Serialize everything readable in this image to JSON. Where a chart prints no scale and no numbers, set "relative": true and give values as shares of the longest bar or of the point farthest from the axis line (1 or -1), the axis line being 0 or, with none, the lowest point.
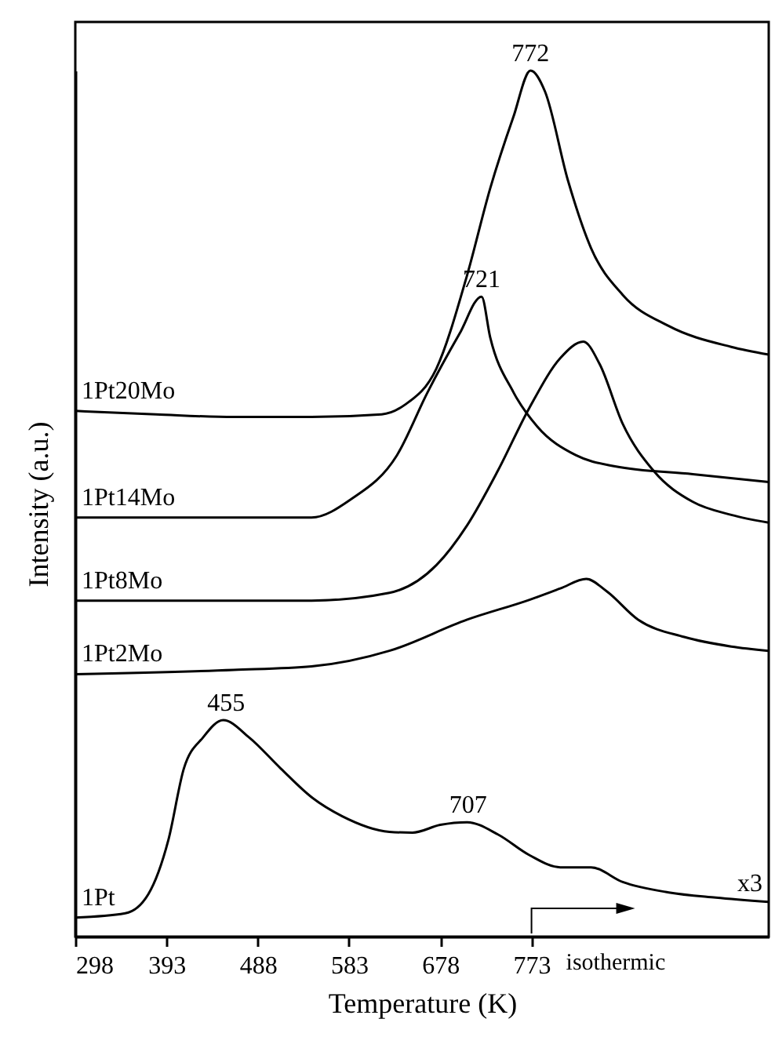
{
  "chart_data": {
    "type": "line",
    "relative": true,
    "xlabel": "Temperature (K)",
    "ylabel": "Intensity (a.u.)",
    "xlim": [
      298,
      1020
    ],
    "xticks": [
      298,
      393,
      488,
      583,
      678,
      773
    ],
    "grid": false,
    "marker": "none",
    "line_style": "solid",
    "x": [
      298,
      382,
      463,
      544,
      617,
      641,
      674,
      706,
      730,
      754,
      772,
      787,
      811,
      835,
      868,
      916,
      981,
      1020
    ],
    "series": [
      {
        "name": "1Pt20Mo",
        "color": "#000000",
        "values": [
          0.607,
          0.603,
          0.6,
          0.6,
          0.603,
          0.614,
          0.656,
          0.764,
          0.864,
          0.946,
          1.0,
          0.976,
          0.873,
          0.795,
          0.741,
          0.705,
          0.681,
          0.672
        ]
      },
      {
        "name": "1Pt14Mo",
        "color": "#000000",
        "x": [
          298,
          382,
          463,
          544,
          585,
          633,
          665,
          698,
          721,
          730,
          754,
          779,
          819,
          860,
          941,
          1020
        ],
        "values": [
          0.484,
          0.484,
          0.484,
          0.484,
          0.505,
          0.556,
          0.629,
          0.696,
          0.739,
          0.692,
          0.629,
          0.589,
          0.556,
          0.543,
          0.534,
          0.525
        ]
      },
      {
        "name": "1Pt8Mo",
        "color": "#000000",
        "x": [
          298,
          382,
          463,
          544,
          625,
          674,
          706,
          738,
          771,
          803,
          827,
          844,
          868,
          900,
          941,
          981,
          1020
        ],
        "values": [
          0.388,
          0.388,
          0.388,
          0.388,
          0.397,
          0.429,
          0.475,
          0.538,
          0.611,
          0.668,
          0.687,
          0.661,
          0.592,
          0.538,
          0.502,
          0.487,
          0.478
        ]
      },
      {
        "name": "1Pt2Mo",
        "color": "#000000",
        "x": [
          298,
          463,
          544,
          625,
          706,
          771,
          803,
          830,
          851,
          884,
          932,
          981,
          1020
        ],
        "values": [
          0.303,
          0.308,
          0.312,
          0.33,
          0.366,
          0.389,
          0.402,
          0.413,
          0.399,
          0.366,
          0.346,
          0.335,
          0.33
        ]
      },
      {
        "name": "1Pt",
        "color": "#000000",
        "x": [
          298,
          350,
          374,
          395,
          411,
          431,
          452,
          479,
          512,
          544,
          576,
          625,
          649,
          678,
          706,
          738,
          771,
          803,
          835,
          868,
          916,
          965,
          1020
        ],
        "values": [
          0.022,
          0.027,
          0.049,
          0.112,
          0.194,
          0.23,
          0.25,
          0.23,
          0.194,
          0.161,
          0.139,
          0.121,
          0.12,
          0.129,
          0.132,
          0.118,
          0.094,
          0.08,
          0.08,
          0.063,
          0.051,
          0.045,
          0.04
        ]
      }
    ],
    "annotations": [
      {
        "text": "772",
        "x": 772,
        "y": 1.0
      },
      {
        "text": "721",
        "x": 721,
        "y": 0.739
      },
      {
        "text": "455",
        "x": 455,
        "y": 0.25
      },
      {
        "text": "707",
        "x": 707,
        "y": 0.132
      },
      "x3",
      "isothermic"
    ]
  }
}
